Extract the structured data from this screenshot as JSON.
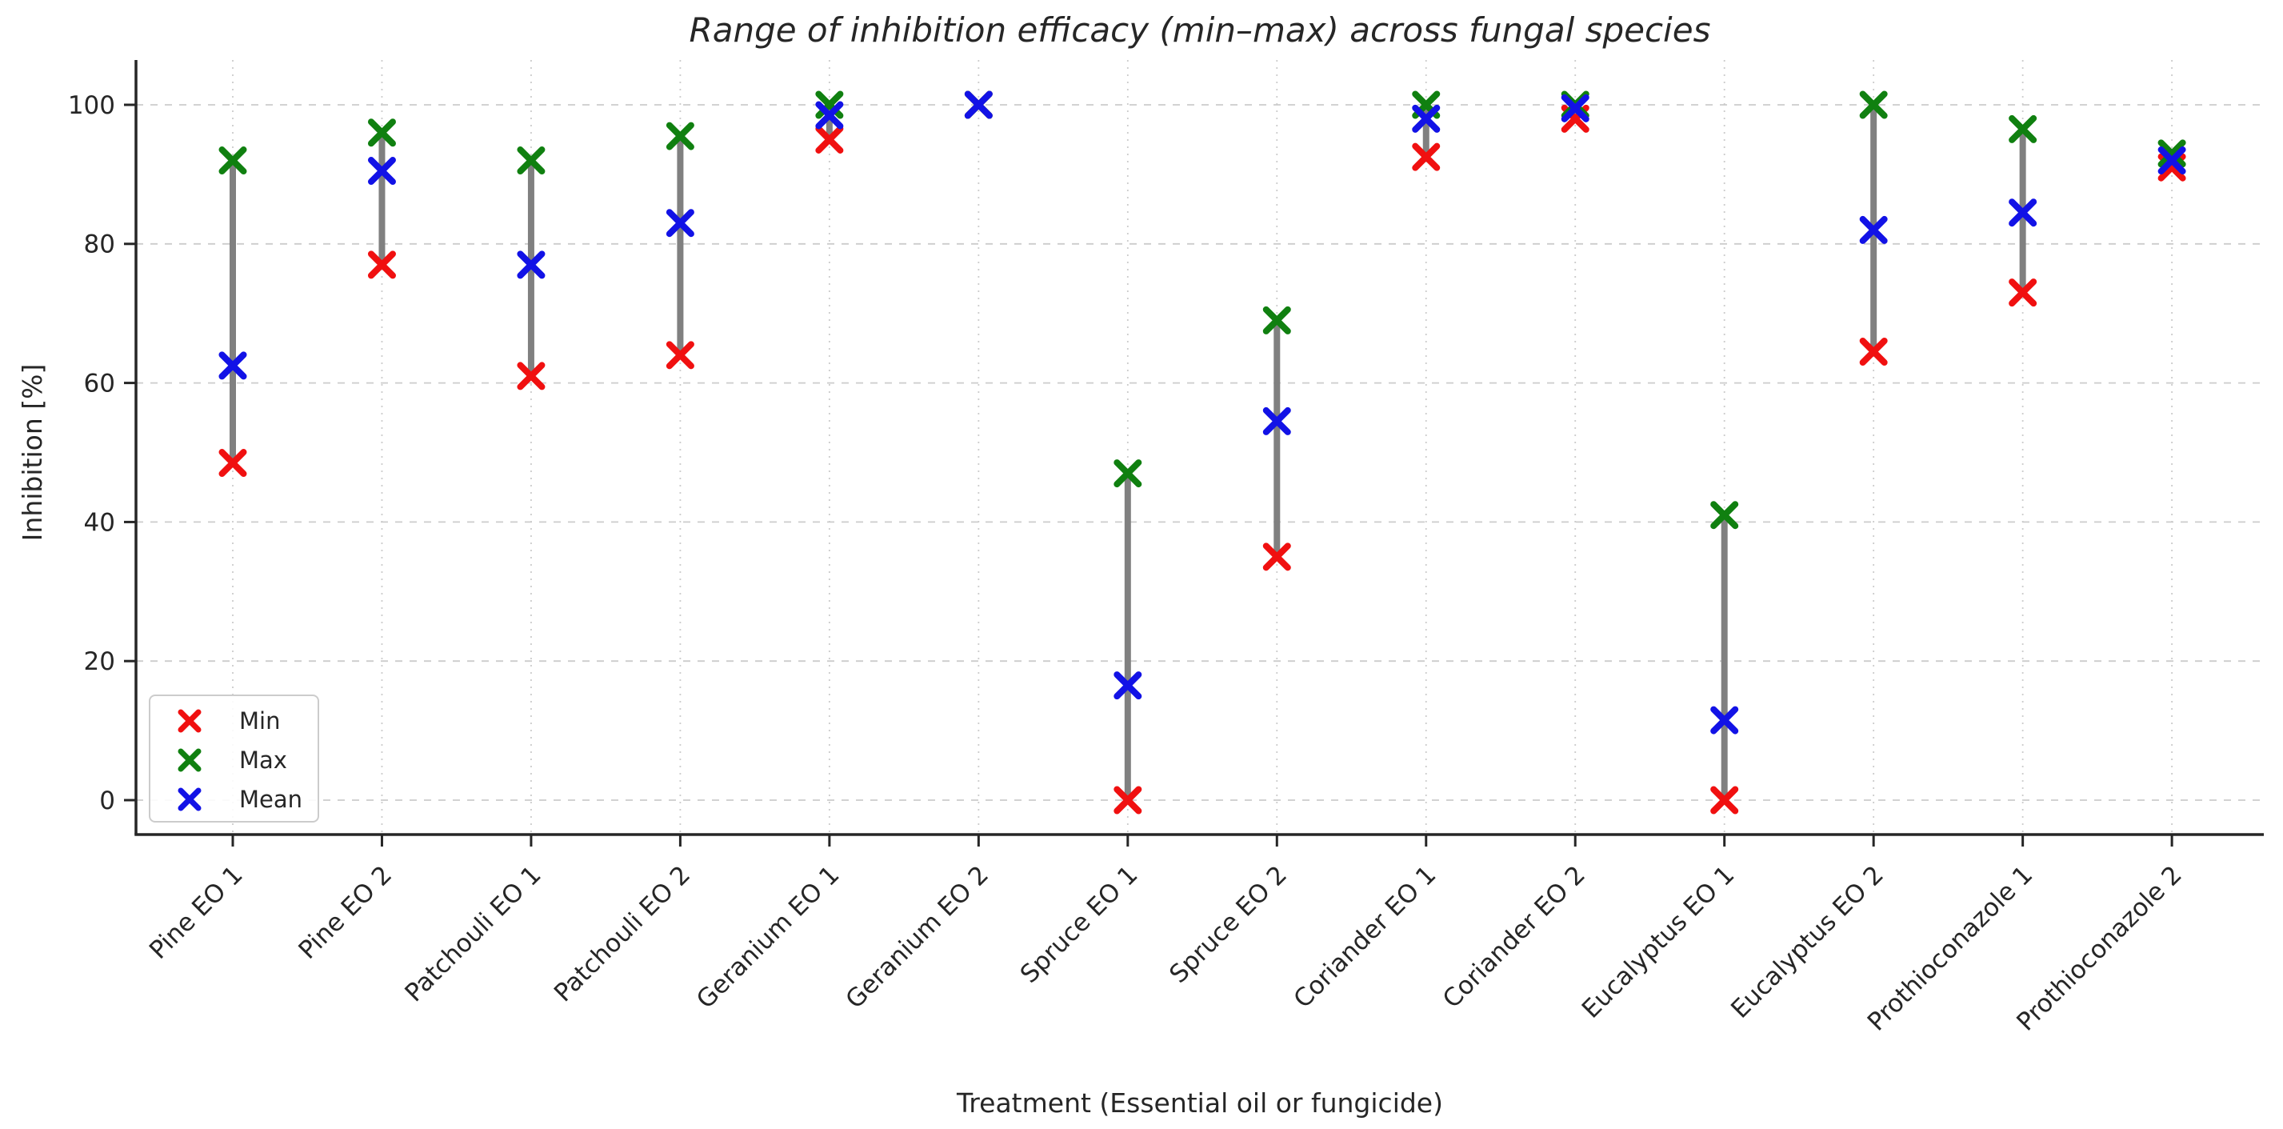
{
  "figure": {
    "background": "#ffffff",
    "text_color": "#262626",
    "spine_color": "#262626",
    "grid_color": "#cccccc",
    "range_line_color": "#808080"
  },
  "chart_data": {
    "type": "scatter",
    "title": "Range of inhibition efficacy (min–max) across fungal species",
    "xlabel": "Treatment (Essential oil or fungicide)",
    "ylabel": "Inhibition [%]",
    "grid": true,
    "legend_position": "lower left",
    "marker": "x",
    "ylim": [
      0,
      100
    ],
    "yticks": [
      0,
      20,
      40,
      60,
      80,
      100
    ],
    "categories": [
      "Pine EO 1",
      "Pine EO 2",
      "Patchouli EO 1",
      "Patchouli EO 2",
      "Geranium EO 1",
      "Geranium EO 2",
      "Spruce EO 1",
      "Spruce EO 2",
      "Coriander EO 1",
      "Coriander EO 2",
      "Eucalyptus EO 1",
      "Eucalyptus EO 2",
      "Prothioconazole 1",
      "Prothioconazole 2"
    ],
    "series": [
      {
        "name": "Min",
        "color": "#f01010",
        "values": [
          48.5,
          77,
          61,
          64,
          95,
          100,
          0,
          35,
          92.5,
          98,
          0,
          64.5,
          73,
          91
        ]
      },
      {
        "name": "Max",
        "color": "#108010",
        "values": [
          92,
          96,
          92,
          95.5,
          100,
          100,
          47,
          69,
          100,
          100,
          41,
          100,
          96.5,
          93
        ]
      },
      {
        "name": "Mean",
        "color": "#1212e6",
        "values": [
          62.5,
          90.5,
          77,
          83,
          98.5,
          100,
          16.5,
          54.5,
          98,
          99.5,
          11.5,
          82,
          84.5,
          92
        ]
      }
    ],
    "range_bars": {
      "style": "vertical line from Min to Max",
      "color": "#808080"
    }
  }
}
